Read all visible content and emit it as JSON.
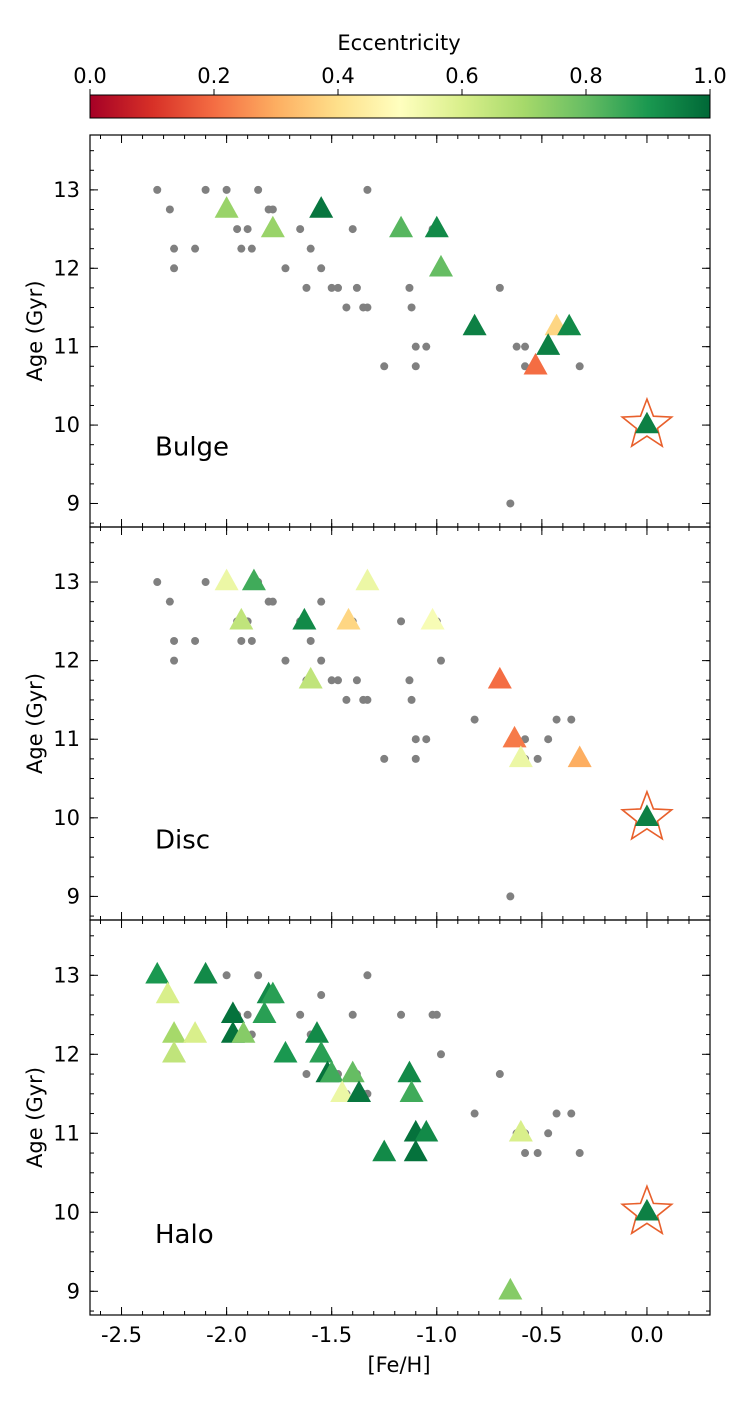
{
  "colorbar": {
    "label": "Eccentricity",
    "ticks": [
      "0.0",
      "0.2",
      "0.4",
      "0.6",
      "0.8",
      "1.0"
    ],
    "tick_values": [
      0,
      0.2,
      0.4,
      0.6,
      0.8,
      1.0
    ],
    "colormap": "RdYlGn",
    "range": [
      0,
      1
    ]
  },
  "chart_data": {
    "type": "scatter",
    "xlabel": "[Fe/H]",
    "ylabel": "Age (Gyr)",
    "xlim": [
      -2.65,
      0.3
    ],
    "ylim": [
      8.7,
      13.7
    ],
    "xticks": [
      "-2.5",
      "-2.0",
      "-1.5",
      "-1.0",
      "-0.5",
      "0.0"
    ],
    "xtick_values": [
      -2.5,
      -2.0,
      -1.5,
      -1.0,
      -0.5,
      0.0
    ],
    "yticks": [
      "9",
      "10",
      "11",
      "12",
      "13"
    ],
    "ytick_values": [
      9,
      10,
      11,
      12,
      13
    ],
    "shared_x": true,
    "background_points": [
      [
        -2.33,
        13.0
      ],
      [
        -2.27,
        12.75
      ],
      [
        -2.25,
        12.25
      ],
      [
        -2.25,
        12.0
      ],
      [
        -2.15,
        12.25
      ],
      [
        -2.1,
        13.0
      ],
      [
        -2.0,
        13.0
      ],
      [
        -1.95,
        12.5
      ],
      [
        -1.93,
        12.25
      ],
      [
        -1.9,
        12.5
      ],
      [
        -1.88,
        12.25
      ],
      [
        -1.85,
        13.0
      ],
      [
        -1.8,
        12.75
      ],
      [
        -1.78,
        12.75
      ],
      [
        -1.72,
        12.0
      ],
      [
        -1.65,
        12.5
      ],
      [
        -1.62,
        11.75
      ],
      [
        -1.6,
        12.25
      ],
      [
        -1.55,
        12.0
      ],
      [
        -1.55,
        12.75
      ],
      [
        -1.5,
        11.75
      ],
      [
        -1.47,
        11.75
      ],
      [
        -1.43,
        11.5
      ],
      [
        -1.4,
        12.5
      ],
      [
        -1.38,
        11.75
      ],
      [
        -1.35,
        11.5
      ],
      [
        -1.33,
        11.5
      ],
      [
        -1.33,
        13.0
      ],
      [
        -1.25,
        10.75
      ],
      [
        -1.17,
        12.5
      ],
      [
        -1.13,
        11.75
      ],
      [
        -1.12,
        11.5
      ],
      [
        -1.1,
        11.0
      ],
      [
        -1.1,
        10.75
      ],
      [
        -1.05,
        11.0
      ],
      [
        -1.02,
        12.5
      ],
      [
        -1.0,
        12.5
      ],
      [
        -0.98,
        12.0
      ],
      [
        -0.82,
        11.25
      ],
      [
        -0.7,
        11.75
      ],
      [
        -0.65,
        9.0
      ],
      [
        -0.62,
        11.0
      ],
      [
        -0.58,
        11.0
      ],
      [
        -0.58,
        10.75
      ],
      [
        -0.52,
        10.75
      ],
      [
        -0.47,
        11.0
      ],
      [
        -0.43,
        11.25
      ],
      [
        -0.36,
        11.25
      ],
      [
        -0.32,
        10.75
      ]
    ],
    "reference_star": {
      "x": 0.0,
      "y": 10.0,
      "eccentricity": 0.95,
      "marker": "star"
    },
    "panels": [
      {
        "label": "Bulge",
        "points": [
          {
            "x": -2.0,
            "y": 12.75,
            "e": 0.72
          },
          {
            "x": -1.78,
            "y": 12.5,
            "e": 0.72
          },
          {
            "x": -1.55,
            "y": 12.75,
            "e": 0.97
          },
          {
            "x": -1.17,
            "y": 12.5,
            "e": 0.82
          },
          {
            "x": -1.0,
            "y": 12.5,
            "e": 0.93
          },
          {
            "x": -0.98,
            "y": 12.0,
            "e": 0.8
          },
          {
            "x": -0.82,
            "y": 11.25,
            "e": 0.95
          },
          {
            "x": -0.43,
            "y": 11.25,
            "e": 0.38
          },
          {
            "x": -0.37,
            "y": 11.25,
            "e": 0.93
          },
          {
            "x": -0.47,
            "y": 11.0,
            "e": 0.95
          },
          {
            "x": -0.53,
            "y": 10.75,
            "e": 0.2
          }
        ]
      },
      {
        "label": "Disc",
        "points": [
          {
            "x": -2.0,
            "y": 13.0,
            "e": 0.55
          },
          {
            "x": -1.87,
            "y": 13.0,
            "e": 0.85
          },
          {
            "x": -1.33,
            "y": 13.0,
            "e": 0.55
          },
          {
            "x": -1.93,
            "y": 12.5,
            "e": 0.65
          },
          {
            "x": -1.63,
            "y": 12.5,
            "e": 0.93
          },
          {
            "x": -1.42,
            "y": 12.5,
            "e": 0.38
          },
          {
            "x": -1.02,
            "y": 12.5,
            "e": 0.52
          },
          {
            "x": -1.6,
            "y": 11.75,
            "e": 0.65
          },
          {
            "x": -0.7,
            "y": 11.75,
            "e": 0.2
          },
          {
            "x": -0.63,
            "y": 11.0,
            "e": 0.22
          },
          {
            "x": -0.6,
            "y": 10.75,
            "e": 0.55
          },
          {
            "x": -0.32,
            "y": 10.75,
            "e": 0.3
          }
        ]
      },
      {
        "label": "Halo",
        "points": [
          {
            "x": -2.33,
            "y": 13.0,
            "e": 0.9
          },
          {
            "x": -2.1,
            "y": 13.0,
            "e": 0.93
          },
          {
            "x": -2.28,
            "y": 12.75,
            "e": 0.6
          },
          {
            "x": -1.8,
            "y": 12.75,
            "e": 0.93
          },
          {
            "x": -1.78,
            "y": 12.75,
            "e": 0.88
          },
          {
            "x": -1.97,
            "y": 12.5,
            "e": 0.98
          },
          {
            "x": -1.82,
            "y": 12.5,
            "e": 0.88
          },
          {
            "x": -2.25,
            "y": 12.25,
            "e": 0.7
          },
          {
            "x": -2.15,
            "y": 12.25,
            "e": 0.6
          },
          {
            "x": -1.97,
            "y": 12.25,
            "e": 0.98
          },
          {
            "x": -1.92,
            "y": 12.25,
            "e": 0.75
          },
          {
            "x": -1.57,
            "y": 12.25,
            "e": 0.93
          },
          {
            "x": -2.25,
            "y": 12.0,
            "e": 0.65
          },
          {
            "x": -1.72,
            "y": 12.0,
            "e": 0.9
          },
          {
            "x": -1.55,
            "y": 12.0,
            "e": 0.88
          },
          {
            "x": -1.52,
            "y": 11.75,
            "e": 0.98
          },
          {
            "x": -1.5,
            "y": 11.75,
            "e": 0.85
          },
          {
            "x": -1.4,
            "y": 11.75,
            "e": 0.8
          },
          {
            "x": -1.13,
            "y": 11.75,
            "e": 0.93
          },
          {
            "x": -1.45,
            "y": 11.5,
            "e": 0.55
          },
          {
            "x": -1.37,
            "y": 11.5,
            "e": 0.97
          },
          {
            "x": -1.12,
            "y": 11.5,
            "e": 0.85
          },
          {
            "x": -1.1,
            "y": 11.0,
            "e": 0.98
          },
          {
            "x": -1.05,
            "y": 11.0,
            "e": 0.93
          },
          {
            "x": -0.6,
            "y": 11.0,
            "e": 0.6
          },
          {
            "x": -1.25,
            "y": 10.75,
            "e": 0.93
          },
          {
            "x": -1.1,
            "y": 10.75,
            "e": 0.98
          },
          {
            "x": -0.65,
            "y": 9.0,
            "e": 0.75
          }
        ]
      }
    ]
  }
}
